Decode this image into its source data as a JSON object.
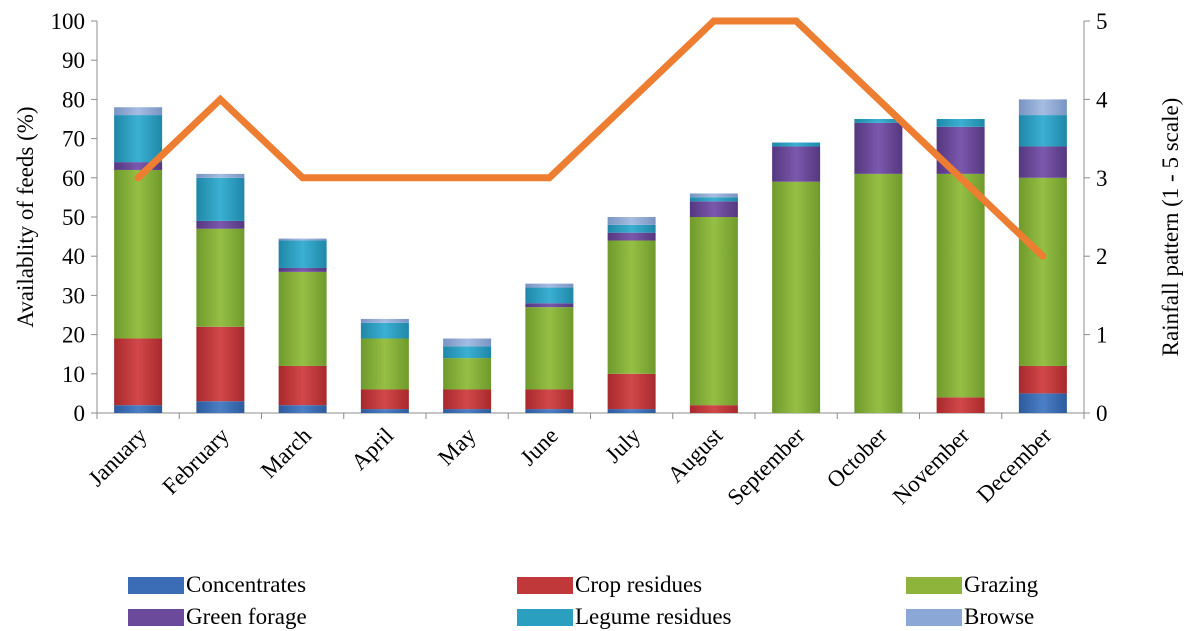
{
  "chart_data": {
    "type": "bar",
    "stacked": true,
    "categories": [
      "January",
      "February",
      "March",
      "April",
      "May",
      "June",
      "July",
      "August",
      "September",
      "October",
      "November",
      "December"
    ],
    "ylabel": "Availablity of feeds (%)",
    "y2label": "Rainfall pattern (1 - 5 scale)",
    "ylim": [
      0,
      100
    ],
    "y2lim": [
      0,
      5
    ],
    "yticks": [
      0,
      10,
      20,
      30,
      40,
      50,
      60,
      70,
      80,
      90,
      100
    ],
    "y2ticks": [
      0,
      1,
      2,
      3,
      4,
      5
    ],
    "series": [
      {
        "name": "Concentrates",
        "color": "#3a6db5",
        "values": [
          2,
          3,
          2,
          1,
          1,
          1,
          1,
          0,
          0,
          0,
          0,
          5
        ]
      },
      {
        "name": "Crop residues",
        "color": "#c0383a",
        "values": [
          17,
          19,
          10,
          5,
          5,
          5,
          9,
          2,
          0,
          0,
          4,
          7
        ]
      },
      {
        "name": "Grazing",
        "color": "#8eb43c",
        "values": [
          43,
          25,
          24,
          13,
          8,
          21,
          34,
          48,
          59,
          61,
          57,
          48
        ]
      },
      {
        "name": "Green forage",
        "color": "#6b4a9b",
        "values": [
          2,
          2,
          1,
          0,
          0,
          1,
          2,
          4,
          9,
          13,
          12,
          8
        ]
      },
      {
        "name": "Legume residues",
        "color": "#2a9fc0",
        "values": [
          12,
          11,
          7,
          4,
          3,
          4,
          2,
          1,
          1,
          1,
          2,
          8
        ]
      },
      {
        "name": "Browse",
        "color": "#8aa7d6",
        "values": [
          2,
          1,
          0.5,
          1,
          2,
          1,
          2,
          1,
          0,
          0,
          0,
          4
        ]
      }
    ],
    "line": {
      "axis": "secondary",
      "color": "#ed7d31",
      "values": [
        3,
        4,
        3,
        3,
        3,
        3,
        4,
        5,
        5,
        4,
        3,
        2
      ]
    },
    "legend_position": "bottom"
  }
}
